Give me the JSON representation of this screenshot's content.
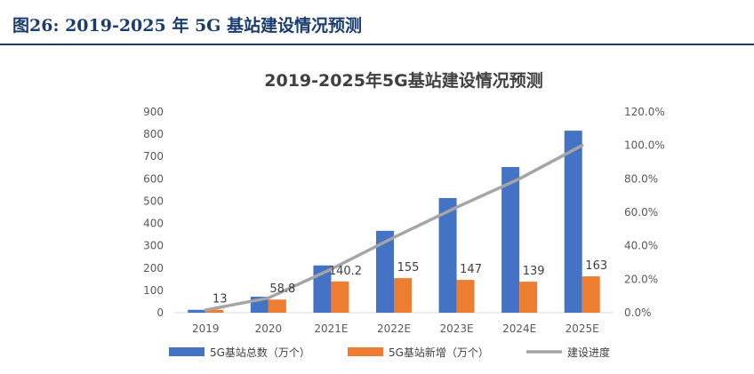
{
  "figure": {
    "title": "图26:    2019-2025 年 5G 基站建设情况预测"
  },
  "chart_data": {
    "type": "bar",
    "title": "2019-2025年5G基站建设情况预测",
    "categories": [
      "2019",
      "2020",
      "2021E",
      "2022E",
      "2023E",
      "2024E",
      "2025E"
    ],
    "series": [
      {
        "name": "5G基站总数（万个）",
        "type": "bar",
        "axis": "left",
        "color": "#4472C4",
        "values": [
          13,
          71.8,
          212,
          367,
          514,
          653,
          816
        ]
      },
      {
        "name": "5G基站新增（万个）",
        "type": "bar",
        "axis": "left",
        "color": "#ED7D31",
        "values": [
          13,
          58.8,
          140.2,
          155,
          147,
          139,
          163
        ],
        "data_labels": [
          "13",
          "58.8",
          "140.2",
          "155",
          "147",
          "139",
          "163"
        ]
      },
      {
        "name": "建设进度",
        "type": "line",
        "axis": "right",
        "color": "#A5A5A5",
        "values": [
          1.6,
          8.8,
          26.0,
          45.0,
          63.0,
          80.0,
          100.0
        ]
      }
    ],
    "y_left": {
      "min": 0,
      "max": 900,
      "ticks": [
        "0",
        "100",
        "200",
        "300",
        "400",
        "500",
        "600",
        "700",
        "800",
        "900"
      ]
    },
    "y_right": {
      "min": 0,
      "max": 120,
      "ticks": [
        "0.0%",
        "20.0%",
        "40.0%",
        "60.0%",
        "80.0%",
        "100.0%",
        "120.0%"
      ]
    },
    "legend": "bottom",
    "grid": false
  }
}
